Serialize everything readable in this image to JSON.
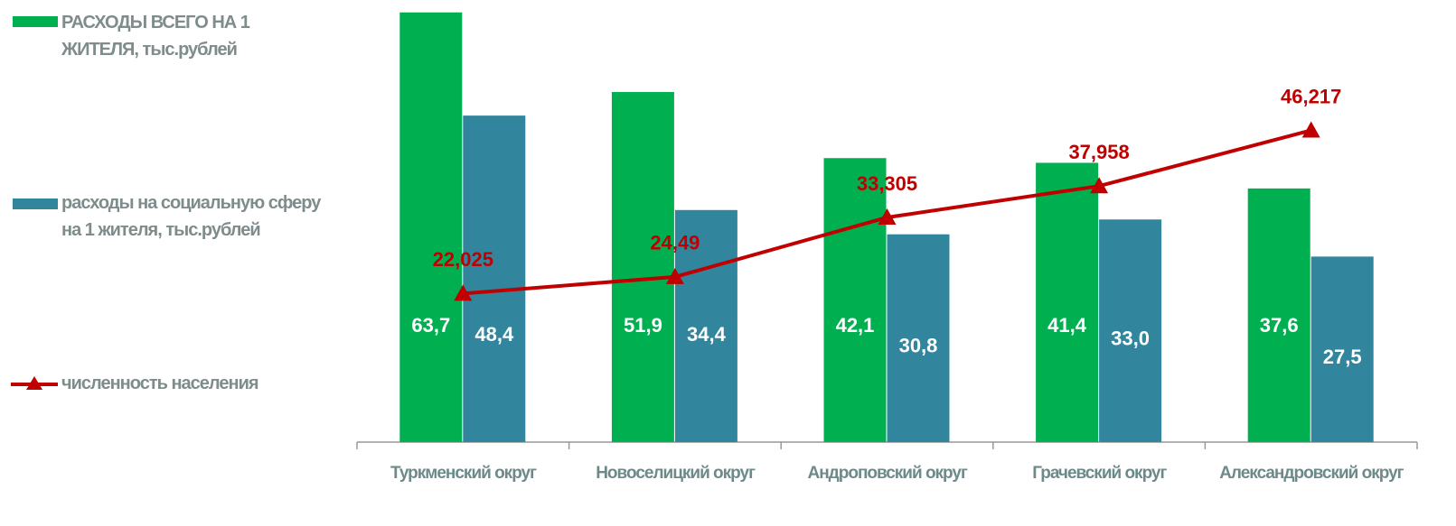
{
  "chart_data": {
    "type": "bar-line",
    "categories": [
      "Туркменский округ",
      "Новоселицкий округ",
      "Андроповский округ",
      "Грачевский округ",
      "Александровский округ"
    ],
    "series": [
      {
        "name": "РАСХОДЫ ВСЕГО НА 1 ЖИТЕЛЯ, тыс.рублей",
        "type": "bar",
        "color": "#00b050",
        "values": [
          63.7,
          51.9,
          42.1,
          41.4,
          37.6
        ],
        "value_labels": [
          "63,7",
          "51,9",
          "42,1",
          "41,4",
          "37,6"
        ]
      },
      {
        "name": "расходы на социальную сферу на 1 жителя, тыс.рублей",
        "type": "bar",
        "color": "#31859c",
        "values": [
          48.4,
          34.4,
          30.8,
          33.0,
          27.5
        ],
        "value_labels": [
          "48,4",
          "34,4",
          "30,8",
          "33,0",
          "27,5"
        ]
      },
      {
        "name": "численность населения",
        "type": "line",
        "axis": "y2",
        "color": "#c00000",
        "values": [
          22.025,
          24.49,
          33.305,
          37.958,
          46.217
        ],
        "value_labels": [
          "22,025",
          "24,49",
          "33,305",
          "37,958",
          "46,217"
        ]
      }
    ],
    "ylim": [
      0,
      64.6
    ],
    "y2lim": [
      0,
      64.6
    ],
    "legend": "left"
  }
}
